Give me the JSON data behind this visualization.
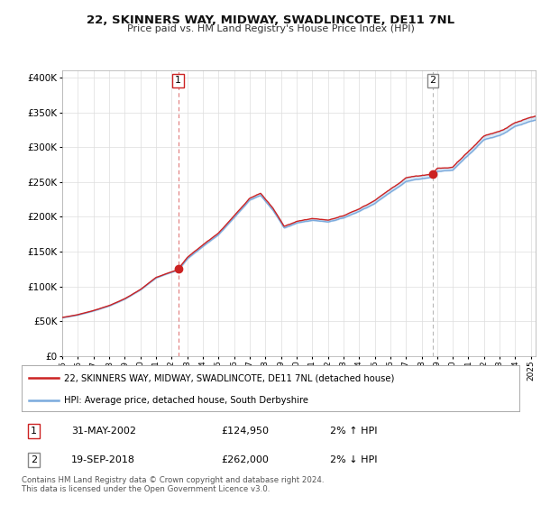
{
  "title": "22, SKINNERS WAY, MIDWAY, SWADLINCOTE, DE11 7NL",
  "subtitle": "Price paid vs. HM Land Registry's House Price Index (HPI)",
  "legend_line1": "22, SKINNERS WAY, MIDWAY, SWADLINCOTE, DE11 7NL (detached house)",
  "legend_line2": "HPI: Average price, detached house, South Derbyshire",
  "annotation1_date": "31-MAY-2002",
  "annotation1_price": "£124,950",
  "annotation1_hpi": "2% ↑ HPI",
  "annotation2_date": "19-SEP-2018",
  "annotation2_price": "£262,000",
  "annotation2_hpi": "2% ↓ HPI",
  "footnote": "Contains HM Land Registry data © Crown copyright and database right 2024.\nThis data is licensed under the Open Government Licence v3.0.",
  "hpi_color": "#7aaadd",
  "hpi_fill": "#ddeeff",
  "price_color": "#cc2222",
  "background_color": "#ffffff",
  "grid_color": "#dddddd",
  "ylim": [
    0,
    410000
  ],
  "xlim_start": 1995.0,
  "xlim_end": 2025.3,
  "sale1_year": 2002.42,
  "sale1_price": 124950,
  "sale2_year": 2018.72,
  "sale2_price": 262000
}
